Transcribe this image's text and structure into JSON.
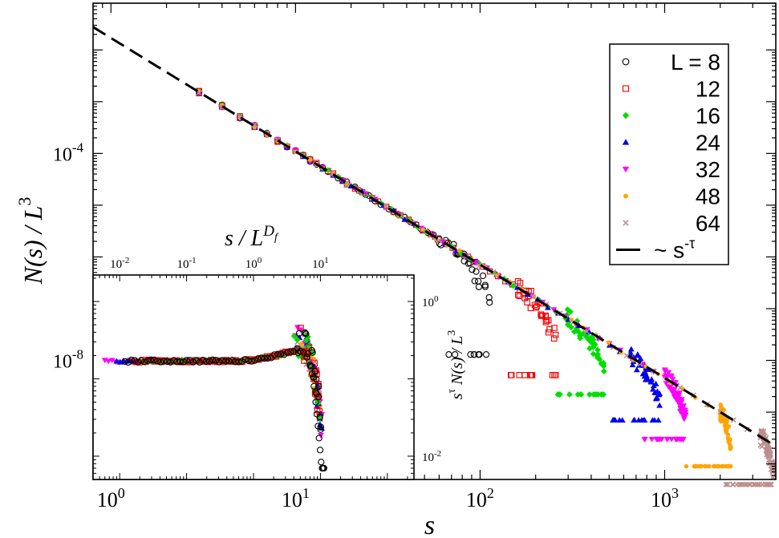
{
  "chart_data": [
    {
      "type": "scatter",
      "scale": "log-log",
      "xlabel": "s",
      "ylabel": "N(s) / L^3",
      "xlim": [
        0.8,
        4000
      ],
      "ylim": [
        5e-11,
        0.08
      ],
      "x_ticks": [
        {
          "value": 1,
          "base": "10",
          "exp": "0"
        },
        {
          "value": 10,
          "base": "10",
          "exp": "1"
        },
        {
          "value": 100,
          "base": "10",
          "exp": "2"
        },
        {
          "value": 1000,
          "base": "10",
          "exp": "3"
        }
      ],
      "y_ticks": [
        {
          "value": 0.0001,
          "base": "10",
          "exp": "-4"
        },
        {
          "value": 1e-08,
          "base": "10",
          "exp": "-8"
        }
      ],
      "fit": {
        "label": "~ s",
        "label_exp": "-τ",
        "amplitude": 0.017,
        "tau": 2.19,
        "style": "dashed"
      },
      "legend_position": "top-right",
      "series": [
        {
          "name": "L = 8",
          "marker": "circle",
          "color": "#000000",
          "s_max": 60,
          "cutoff": 115,
          "floor": 1.3e-08
        },
        {
          "name": "12",
          "marker": "square",
          "color": "#ee0000",
          "s_max": 150,
          "cutoff": 260,
          "floor": 5.2e-09
        },
        {
          "name": "16",
          "marker": "diamond",
          "color": "#00dd00",
          "s_max": 290,
          "cutoff": 470,
          "floor": 2.2e-09
        },
        {
          "name": "24",
          "marker": "triangle-up",
          "color": "#0000ee",
          "s_max": 650,
          "cutoff": 950,
          "floor": 7e-10
        },
        {
          "name": "32",
          "marker": "triangle-down",
          "color": "#ff00ff",
          "s_max": 1000,
          "cutoff": 1300,
          "floor": 3e-10
        },
        {
          "name": "48",
          "marker": "dot",
          "color": "#ffa500",
          "s_max": 2000,
          "cutoff": 2300,
          "floor": 9e-11
        },
        {
          "name": "64",
          "marker": "x",
          "color": "#bc8f8f",
          "s_max": 3300,
          "cutoff": 3900,
          "floor": 4e-11
        }
      ]
    },
    {
      "type": "scatter",
      "role": "inset",
      "scale": "log-log",
      "xlabel": "s / L^Df",
      "xlabel_parts": {
        "main": "s / L",
        "sup": "D",
        "sub": "f"
      },
      "ylabel": "s^τ N(s) / L^3",
      "ylabel_parts": {
        "base": "s",
        "sup": "τ",
        "rest": " N(s) / L",
        "sup2": "3"
      },
      "xlim": [
        0.004,
        250
      ],
      "ylim": [
        0.005,
        2.2
      ],
      "x_ticks": [
        {
          "value": 0.01,
          "base": "10",
          "exp": "-2"
        },
        {
          "value": 0.1,
          "base": "10",
          "exp": "-1"
        },
        {
          "value": 1,
          "base": "10",
          "exp": "0"
        },
        {
          "value": 10,
          "base": "10",
          "exp": "1"
        }
      ],
      "y_ticks": [
        {
          "value": 1,
          "base": "10",
          "exp": "0"
        },
        {
          "value": 0.01,
          "base": "10",
          "exp": "-2"
        }
      ],
      "plateau": 0.17,
      "peak": {
        "x": 4.5,
        "y": 0.24
      },
      "drop_to": 0.007,
      "note": "All seven series collapse onto a single curve: flat plateau, a bump near 5, then a sharp drop."
    }
  ]
}
